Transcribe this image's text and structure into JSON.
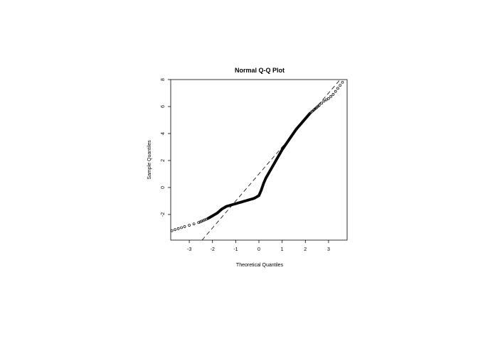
{
  "chart_data": {
    "type": "scatter",
    "title": "Normal Q-Q Plot",
    "xlabel": "Theoretical Quantiles",
    "ylabel": "Sample Quantiles",
    "xlim": [
      -3.8,
      3.8
    ],
    "ylim": [
      -3.9,
      8.0
    ],
    "x_ticks": [
      -3,
      -2,
      -1,
      0,
      1,
      2,
      3
    ],
    "x_tick_labels": [
      "-3",
      "-2",
      "-1",
      "0",
      "1",
      "2",
      "3"
    ],
    "y_ticks": [
      -2,
      0,
      2,
      4,
      6,
      8
    ],
    "y_tick_labels": [
      "-2",
      "0",
      "2",
      "4",
      "6",
      "8"
    ],
    "reference_line": {
      "style": "dashed",
      "intercept": 1.0,
      "slope": 2.0
    },
    "series": [
      {
        "name": "sample",
        "marker": "open-circle",
        "x": [
          -3.75,
          -3.2,
          -3.0,
          -2.8,
          -2.6,
          -2.4,
          -2.2,
          -2.0,
          -1.8,
          -1.6,
          -1.4,
          -1.2,
          -1.0,
          -0.8,
          -0.6,
          -0.4,
          -0.2,
          0.0,
          0.1,
          0.2,
          0.3,
          0.4,
          0.5,
          0.6,
          0.7,
          0.8,
          0.9,
          1.0,
          1.2,
          1.4,
          1.6,
          1.8,
          2.0,
          2.2,
          2.4,
          2.6,
          2.8,
          3.0,
          3.2,
          3.6
        ],
        "y": [
          -3.2,
          -2.9,
          -2.8,
          -2.7,
          -2.6,
          -2.45,
          -2.3,
          -2.1,
          -1.9,
          -1.6,
          -1.4,
          -1.3,
          -1.2,
          -1.1,
          -1.0,
          -0.9,
          -0.8,
          -0.6,
          -0.2,
          0.3,
          0.7,
          1.0,
          1.3,
          1.6,
          1.9,
          2.2,
          2.5,
          2.8,
          3.3,
          3.8,
          4.3,
          4.7,
          5.1,
          5.5,
          5.8,
          6.1,
          6.4,
          6.6,
          6.9,
          7.8
        ]
      }
    ]
  }
}
